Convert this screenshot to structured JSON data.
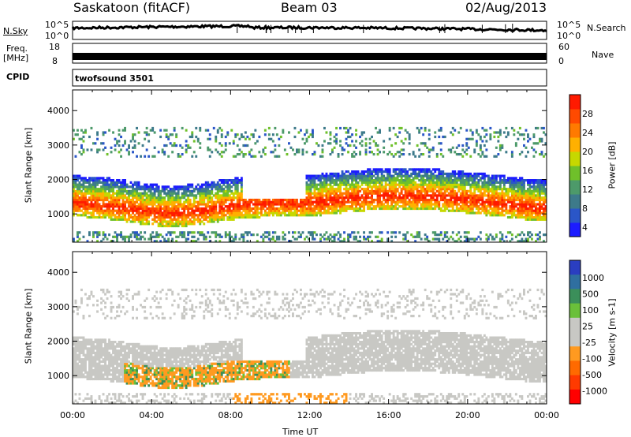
{
  "header": {
    "station": "Saskatoon (fitACF)",
    "beam": "Beam 03",
    "date": "02/Aug/2013"
  },
  "sky_panel": {
    "left_label": "N.Sky",
    "right_label": "N.Search",
    "y_ticks_left": [
      "10^5",
      "10^0"
    ],
    "y_ticks_right": [
      "10^5",
      "10^0"
    ]
  },
  "freq_panel": {
    "left_label_1": "Freq.",
    "left_label_2": "[MHz]",
    "right_label": "Nave",
    "y_ticks_left": [
      "18",
      "8"
    ],
    "y_ticks_right": [
      "60",
      "0"
    ]
  },
  "cpid_panel": {
    "label": "CPID",
    "program": "twofsound  3501"
  },
  "chart_data": [
    {
      "type": "heatmap",
      "name_hint": "power",
      "ylabel": "Slant Range [km]",
      "y_ticks": [
        1000,
        2000,
        3000,
        4000
      ],
      "ylim": [
        180,
        4600
      ],
      "xlim": [
        0,
        24
      ],
      "colorbar_label": "Power [dB]",
      "colorbar_ticks": [
        "28",
        "24",
        "20",
        "16",
        "12",
        "8",
        "4"
      ],
      "colorbar_colors": [
        "#1c1cff",
        "#2a56c8",
        "#3d7a8a",
        "#4d9a6a",
        "#6fc02a",
        "#c6d800",
        "#ffb000",
        "#ff7a00",
        "#ff4a00",
        "#ff1a00"
      ]
    },
    {
      "type": "heatmap",
      "name_hint": "velocity",
      "ylabel": "Slant Range [km]",
      "y_ticks": [
        1000,
        2000,
        3000,
        4000
      ],
      "ylim": [
        180,
        4600
      ],
      "xlim": [
        0,
        24
      ],
      "colorbar_label": "Velocity [m s-1]",
      "colorbar_ticks": [
        "1000",
        "500",
        "100",
        "25",
        "-25",
        "-100",
        "-500",
        "-1000"
      ],
      "colorbar_colors": [
        "#2a3ec0",
        "#2f6fa0",
        "#3b8f5a",
        "#6ac03a",
        "#c8c8c4",
        "#c8c8c4",
        "#ff9a20",
        "#ff6a00",
        "#ff3a00",
        "#ff0000"
      ]
    }
  ],
  "x_axis": {
    "ticks": [
      "00:00",
      "04:00",
      "08:00",
      "12:00",
      "16:00",
      "20:00",
      "00:00"
    ],
    "label": "Time UT"
  }
}
